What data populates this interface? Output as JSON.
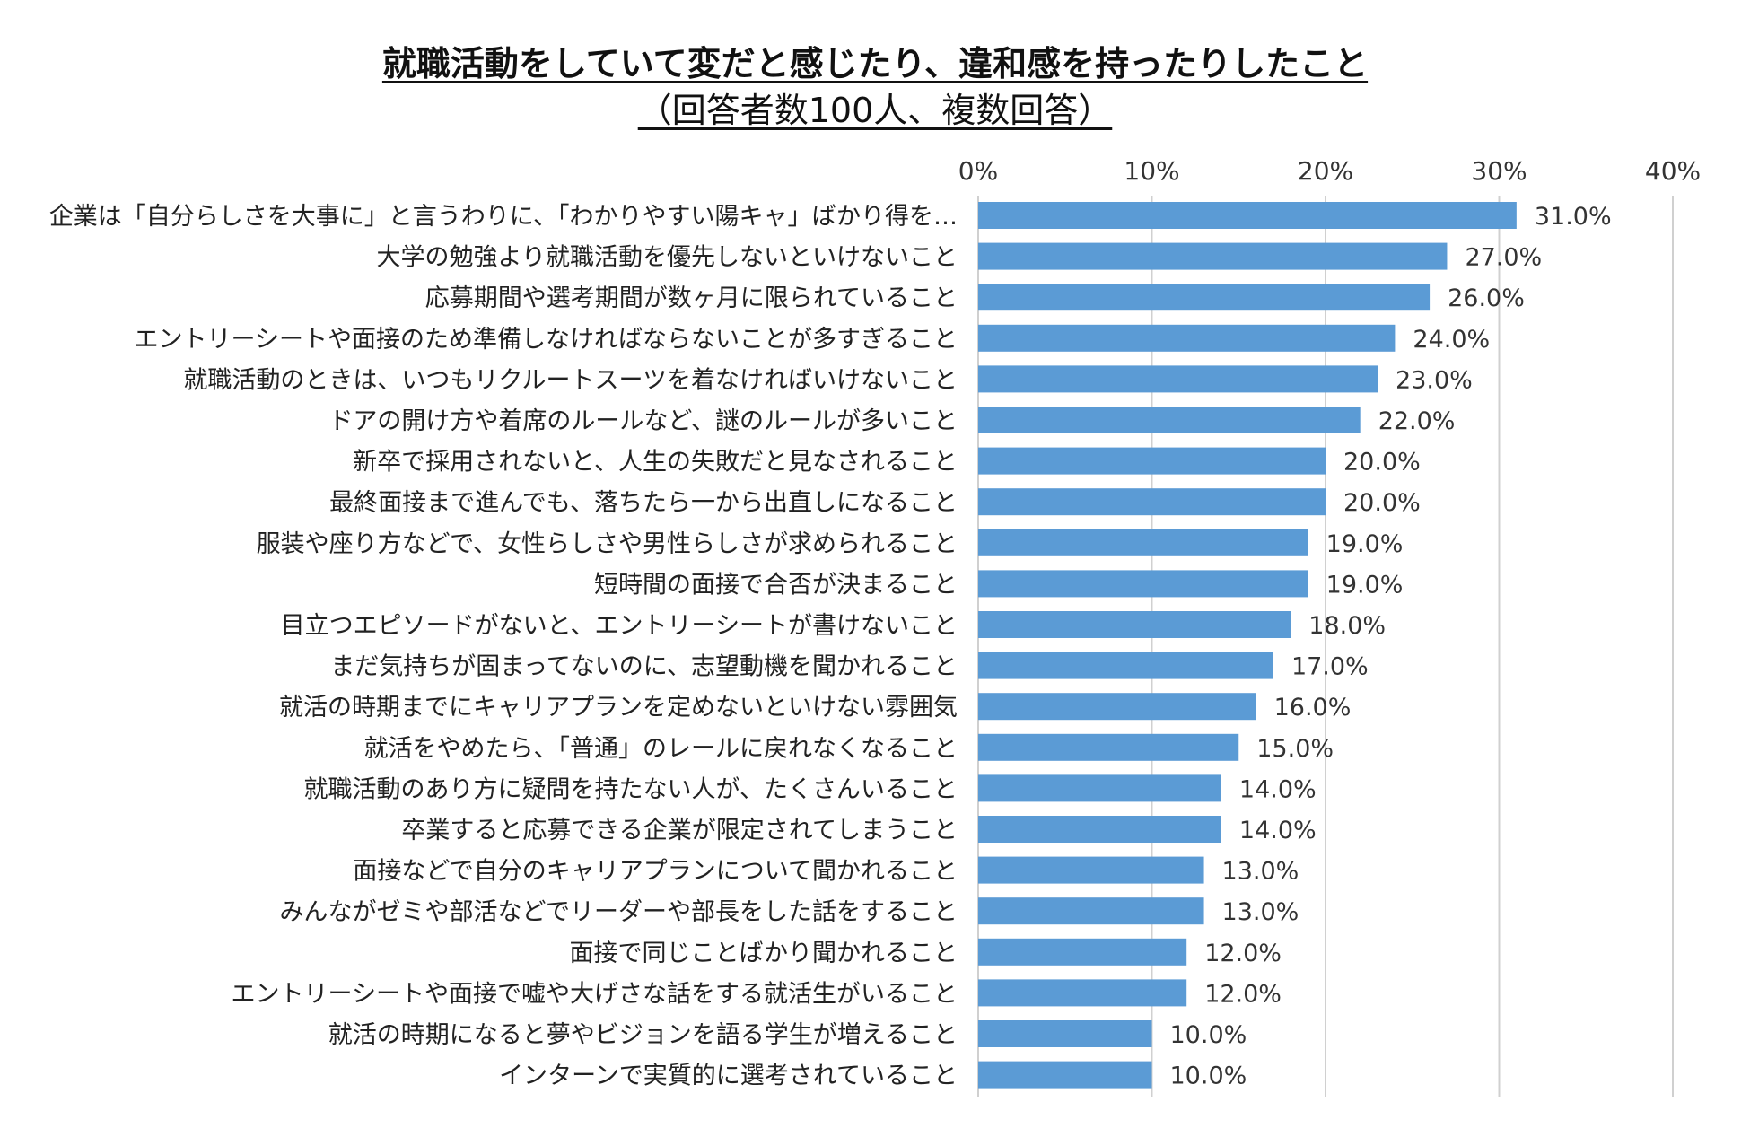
{
  "title": "就職活動をしていて変だと感じたり、違和感を持ったりしたこと",
  "subtitle": "（回答者数100人、複数回答）",
  "colors": {
    "bar": "#5b9bd5",
    "grid": "#d0d0d0"
  },
  "chart_data": {
    "type": "bar",
    "orientation": "horizontal",
    "title": "就職活動をしていて変だと感じたり、違和感を持ったりしたこと",
    "subtitle": "（回答者数100人、複数回答）",
    "xlim": [
      0,
      40
    ],
    "xticks": [
      "0%",
      "10%",
      "20%",
      "30%",
      "40%"
    ],
    "grid": true,
    "categories": [
      "企業は「自分らしさを大事に」と言うわりに、「わかりやすい陽キャ」ばかり得を…",
      "大学の勉強より就職活動を優先しないといけないこと",
      "応募期間や選考期間が数ヶ月に限られていること",
      "エントリーシートや面接のため準備しなければならないことが多すぎること",
      "就職活動のときは、いつもリクルートスーツを着なければいけないこと",
      "ドアの開け方や着席のルールなど、謎のルールが多いこと",
      "新卒で採用されないと、人生の失敗だと見なされること",
      "最終面接まで進んでも、落ちたら一から出直しになること",
      "服装や座り方などで、女性らしさや男性らしさが求められること",
      "短時間の面接で合否が決まること",
      "目立つエピソードがないと、エントリーシートが書けないこと",
      "まだ気持ちが固まってないのに、志望動機を聞かれること",
      "就活の時期までにキャリアプランを定めないといけない雰囲気",
      "就活をやめたら、「普通」のレールに戻れなくなること",
      "就職活動のあり方に疑問を持たない人が、たくさんいること",
      "卒業すると応募できる企業が限定されてしまうこと",
      "面接などで自分のキャリアプランについて聞かれること",
      "みんながゼミや部活などでリーダーや部長をした話をすること",
      "面接で同じことばかり聞かれること",
      "エントリーシートや面接で嘘や大げさな話をする就活生がいること",
      "就活の時期になると夢やビジョンを語る学生が増えること",
      "インターンで実質的に選考されていること"
    ],
    "values": [
      31.0,
      27.0,
      26.0,
      24.0,
      23.0,
      22.0,
      20.0,
      20.0,
      19.0,
      19.0,
      18.0,
      17.0,
      16.0,
      15.0,
      14.0,
      14.0,
      13.0,
      13.0,
      12.0,
      12.0,
      10.0,
      10.0
    ],
    "value_labels": [
      "31.0%",
      "27.0%",
      "26.0%",
      "24.0%",
      "23.0%",
      "22.0%",
      "20.0%",
      "20.0%",
      "19.0%",
      "19.0%",
      "18.0%",
      "17.0%",
      "16.0%",
      "15.0%",
      "14.0%",
      "14.0%",
      "13.0%",
      "13.0%",
      "12.0%",
      "12.0%",
      "10.0%",
      "10.0%"
    ]
  }
}
